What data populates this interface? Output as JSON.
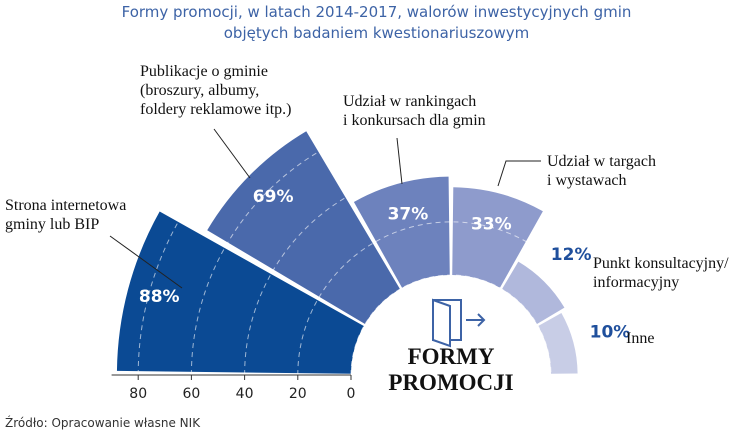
{
  "chart_data": {
    "type": "rose",
    "title": "Formy promocji, w latach 2014-2017, walorów inwestycyjnych gmin\nobjętych badaniem kwestionariuszowym",
    "categories": [
      "Strona internetowa\ngminy lub BIP",
      "Publikacje o gminie\n(broszury, albumy,\nfoldery reklamowe itp.)",
      "Udział w rankingach\ni konkursach dla gmin",
      "Udział w targach\ni wystawach",
      "Punkt konsultacyjny/\ninformacyjny",
      "Inne"
    ],
    "values": [
      88,
      69,
      37,
      33,
      12,
      10
    ],
    "value_labels": [
      "88%",
      "69%",
      "37%",
      "33%",
      "12%",
      "10%"
    ],
    "colors": [
      "#0b4a94",
      "#4a69ab",
      "#6d82bd",
      "#8e9bcc",
      "#b0b8dc",
      "#c8cde6"
    ],
    "ylim": [
      0,
      90
    ],
    "yticks": [
      0,
      20,
      40,
      60,
      80
    ],
    "center_label": "FORMY\nPROMOCJI",
    "source": "Źródło: Opracowanie własne NIK"
  }
}
